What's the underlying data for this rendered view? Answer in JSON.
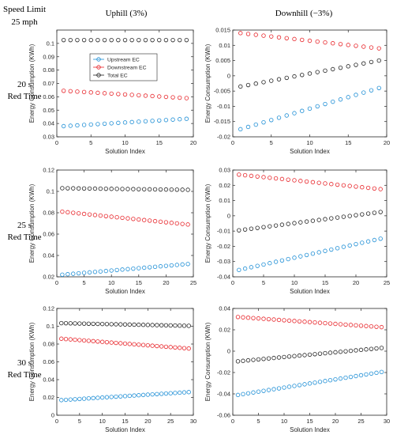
{
  "figure": {
    "corner_label": [
      "Speed Limit",
      "25 mph"
    ],
    "col_titles": [
      "Uphill (3%)",
      "Downhill (−3%)"
    ],
    "row_titles": [
      [
        "20 s",
        "Red Time"
      ],
      [
        "25 s",
        "Red Time"
      ],
      [
        "30 s",
        "Red Time"
      ]
    ],
    "colors": {
      "upstream": "#1f8fd6",
      "downstream": "#e8262b",
      "total": "#222222",
      "axes_bg": "#ffffff"
    }
  },
  "chart_data": [
    {
      "type": "scatter",
      "panel": "20s-uphill",
      "xlabel": "Solution Index",
      "ylabel": "Energy Consumption (KWh)",
      "xlim": [
        0,
        20
      ],
      "ylim": [
        0.03,
        0.11
      ],
      "xticks": [
        0,
        5,
        10,
        15,
        20
      ],
      "yticks": [
        0.03,
        0.04,
        0.05,
        0.06,
        0.07,
        0.08,
        0.09,
        0.1
      ],
      "ytick_labels": [
        "0.03",
        "0.04",
        "0.05",
        "0.06",
        "0.07",
        "0.08",
        "0.09",
        "0.1"
      ],
      "legend": {
        "position": "top-center",
        "entries": [
          "Upstream EC",
          "Downstream EC",
          "Total EC"
        ]
      },
      "x_range": [
        1,
        19
      ],
      "series": [
        {
          "name": "Upstream EC",
          "key": "upstream",
          "y_start": 0.038,
          "y_end": 0.0435
        },
        {
          "name": "Downstream EC",
          "key": "downstream",
          "y_start": 0.0645,
          "y_end": 0.059
        },
        {
          "name": "Total EC",
          "key": "total",
          "y_start": 0.1025,
          "y_end": 0.1025
        }
      ]
    },
    {
      "type": "scatter",
      "panel": "20s-downhill",
      "xlabel": "Solution Index",
      "ylabel": "Energy Consumption (KWh)",
      "xlim": [
        0,
        20
      ],
      "ylim": [
        -0.02,
        0.015
      ],
      "xticks": [
        0,
        5,
        10,
        15,
        20
      ],
      "yticks": [
        -0.02,
        -0.015,
        -0.01,
        -0.005,
        0,
        0.005,
        0.01,
        0.015
      ],
      "ytick_labels": [
        "-0.02",
        "-0.015",
        "-0.01",
        "-0.005",
        "0",
        "0.005",
        "0.01",
        "0.015"
      ],
      "x_range": [
        1,
        19
      ],
      "series": [
        {
          "name": "Upstream EC",
          "key": "upstream",
          "y_start": -0.0175,
          "y_end": -0.004
        },
        {
          "name": "Downstream EC",
          "key": "downstream",
          "y_start": 0.014,
          "y_end": 0.009
        },
        {
          "name": "Total EC",
          "key": "total",
          "y_start": -0.0035,
          "y_end": 0.005
        }
      ]
    },
    {
      "type": "scatter",
      "panel": "25s-uphill",
      "xlabel": "Solution Index",
      "ylabel": "Energy Consumption (KWh)",
      "xlim": [
        0,
        25
      ],
      "ylim": [
        0.02,
        0.12
      ],
      "xticks": [
        0,
        5,
        10,
        15,
        20,
        25
      ],
      "yticks": [
        0.02,
        0.04,
        0.06,
        0.08,
        0.1,
        0.12
      ],
      "ytick_labels": [
        "0.02",
        "0.04",
        "0.06",
        "0.08",
        "0.1",
        "0.12"
      ],
      "x_range": [
        1,
        24
      ],
      "series": [
        {
          "name": "Upstream EC",
          "key": "upstream",
          "y_start": 0.022,
          "y_end": 0.032
        },
        {
          "name": "Downstream EC",
          "key": "downstream",
          "y_start": 0.081,
          "y_end": 0.069
        },
        {
          "name": "Total EC",
          "key": "total",
          "y_start": 0.103,
          "y_end": 0.1015
        }
      ]
    },
    {
      "type": "scatter",
      "panel": "25s-downhill",
      "xlabel": "Solution Index",
      "ylabel": "Energy Consumption (KWh)",
      "xlim": [
        0,
        25
      ],
      "ylim": [
        -0.04,
        0.03
      ],
      "xticks": [
        0,
        5,
        10,
        15,
        20,
        25
      ],
      "yticks": [
        -0.04,
        -0.03,
        -0.02,
        -0.01,
        0,
        0.01,
        0.02,
        0.03
      ],
      "ytick_labels": [
        "-0.04",
        "-0.03",
        "-0.02",
        "-0.01",
        "0",
        "0.01",
        "0.02",
        "0.03"
      ],
      "x_range": [
        1,
        24
      ],
      "series": [
        {
          "name": "Upstream EC",
          "key": "upstream",
          "y_start": -0.0355,
          "y_end": -0.015
        },
        {
          "name": "Downstream EC",
          "key": "downstream",
          "y_start": 0.027,
          "y_end": 0.0175
        },
        {
          "name": "Total EC",
          "key": "total",
          "y_start": -0.0095,
          "y_end": 0.0025
        }
      ]
    },
    {
      "type": "scatter",
      "panel": "30s-uphill",
      "xlabel": "Solution Index",
      "ylabel": "Energy Consumption (KWh)",
      "xlim": [
        0,
        30
      ],
      "ylim": [
        0.0,
        0.12
      ],
      "xticks": [
        0,
        5,
        10,
        15,
        20,
        25,
        30
      ],
      "yticks": [
        0,
        0.02,
        0.04,
        0.06,
        0.08,
        0.1,
        0.12
      ],
      "ytick_labels": [
        "0",
        "0.02",
        "0.04",
        "0.06",
        "0.08",
        "0.1",
        "0.12"
      ],
      "x_range": [
        1,
        29
      ],
      "series": [
        {
          "name": "Upstream EC",
          "key": "upstream",
          "y_start": 0.017,
          "y_end": 0.026
        },
        {
          "name": "Downstream EC",
          "key": "downstream",
          "y_start": 0.086,
          "y_end": 0.075
        },
        {
          "name": "Total EC",
          "key": "total",
          "y_start": 0.1035,
          "y_end": 0.1005
        }
      ]
    },
    {
      "type": "scatter",
      "panel": "30s-downhill",
      "xlabel": "Solution Index",
      "ylabel": "Energy Consumption (KWh)",
      "xlim": [
        0,
        30
      ],
      "ylim": [
        -0.06,
        0.04
      ],
      "xticks": [
        0,
        5,
        10,
        15,
        20,
        25,
        30
      ],
      "yticks": [
        -0.06,
        -0.04,
        -0.02,
        0,
        0.02,
        0.04
      ],
      "ytick_labels": [
        "-0.06",
        "-0.04",
        "-0.02",
        "0",
        "0.02",
        "0.04"
      ],
      "x_range": [
        1,
        29
      ],
      "series": [
        {
          "name": "Upstream EC",
          "key": "upstream",
          "y_start": -0.041,
          "y_end": -0.0195
        },
        {
          "name": "Downstream EC",
          "key": "downstream",
          "y_start": 0.032,
          "y_end": 0.0225
        },
        {
          "name": "Total EC",
          "key": "total",
          "y_start": -0.0095,
          "y_end": 0.003
        }
      ]
    }
  ]
}
